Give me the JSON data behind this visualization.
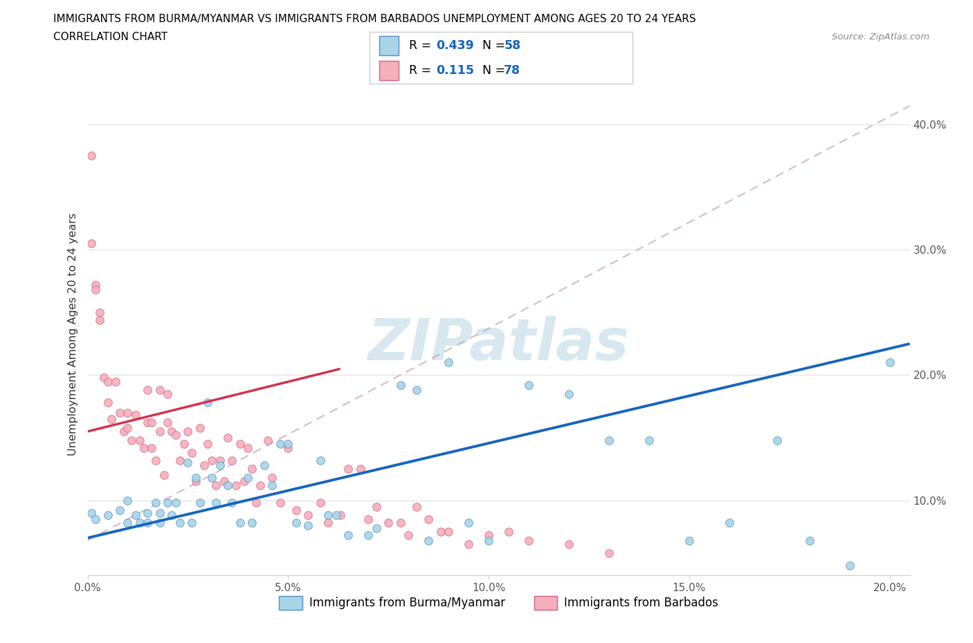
{
  "title_line1": "IMMIGRANTS FROM BURMA/MYANMAR VS IMMIGRANTS FROM BARBADOS UNEMPLOYMENT AMONG AGES 20 TO 24 YEARS",
  "title_line2": "CORRELATION CHART",
  "source_text": "Source: ZipAtlas.com",
  "ylabel": "Unemployment Among Ages 20 to 24 years",
  "xlim": [
    0.0,
    0.205
  ],
  "ylim": [
    0.04,
    0.425
  ],
  "xticks": [
    0.0,
    0.05,
    0.1,
    0.15,
    0.2
  ],
  "yticks": [
    0.1,
    0.2,
    0.3,
    0.4
  ],
  "xticklabels": [
    "0.0%",
    "5.0%",
    "10.0%",
    "15.0%",
    "20.0%"
  ],
  "yticklabels": [
    "10.0%",
    "20.0%",
    "30.0%",
    "40.0%"
  ],
  "color_blue": "#A8D4E8",
  "color_pink": "#F5B0BC",
  "color_blue_line": "#1565C0",
  "color_pink_line": "#D63050",
  "color_blue_edge": "#5090C0",
  "color_pink_edge": "#D06080",
  "legend_label1": "Immigrants from Burma/Myanmar",
  "legend_label2": "Immigrants from Barbados",
  "R1": "0.439",
  "N1": "58",
  "R2": "0.115",
  "N2": "78",
  "watermark": "ZIPatlas",
  "blue_scatter_x": [
    0.001,
    0.002,
    0.005,
    0.008,
    0.01,
    0.01,
    0.012,
    0.013,
    0.015,
    0.015,
    0.017,
    0.018,
    0.018,
    0.02,
    0.021,
    0.022,
    0.023,
    0.025,
    0.026,
    0.027,
    0.028,
    0.03,
    0.031,
    0.032,
    0.033,
    0.035,
    0.036,
    0.038,
    0.04,
    0.041,
    0.044,
    0.046,
    0.048,
    0.05,
    0.052,
    0.055,
    0.058,
    0.06,
    0.062,
    0.065,
    0.07,
    0.072,
    0.078,
    0.082,
    0.085,
    0.09,
    0.095,
    0.1,
    0.11,
    0.12,
    0.13,
    0.14,
    0.15,
    0.16,
    0.172,
    0.18,
    0.19,
    0.2
  ],
  "blue_scatter_y": [
    0.09,
    0.085,
    0.088,
    0.092,
    0.1,
    0.082,
    0.088,
    0.082,
    0.09,
    0.082,
    0.098,
    0.09,
    0.082,
    0.098,
    0.088,
    0.098,
    0.082,
    0.13,
    0.082,
    0.118,
    0.098,
    0.178,
    0.118,
    0.098,
    0.128,
    0.112,
    0.098,
    0.082,
    0.118,
    0.082,
    0.128,
    0.112,
    0.145,
    0.145,
    0.082,
    0.08,
    0.132,
    0.088,
    0.088,
    0.072,
    0.072,
    0.078,
    0.192,
    0.188,
    0.068,
    0.21,
    0.082,
    0.068,
    0.192,
    0.185,
    0.148,
    0.148,
    0.068,
    0.082,
    0.148,
    0.068,
    0.048,
    0.21
  ],
  "pink_scatter_x": [
    0.001,
    0.001,
    0.002,
    0.002,
    0.003,
    0.003,
    0.004,
    0.005,
    0.005,
    0.006,
    0.007,
    0.008,
    0.009,
    0.01,
    0.01,
    0.011,
    0.012,
    0.013,
    0.014,
    0.015,
    0.015,
    0.016,
    0.016,
    0.017,
    0.018,
    0.018,
    0.019,
    0.02,
    0.02,
    0.021,
    0.022,
    0.023,
    0.024,
    0.025,
    0.026,
    0.027,
    0.028,
    0.029,
    0.03,
    0.031,
    0.032,
    0.033,
    0.034,
    0.035,
    0.036,
    0.037,
    0.038,
    0.039,
    0.04,
    0.041,
    0.042,
    0.043,
    0.045,
    0.046,
    0.048,
    0.05,
    0.052,
    0.055,
    0.058,
    0.06,
    0.063,
    0.065,
    0.068,
    0.07,
    0.072,
    0.075,
    0.078,
    0.08,
    0.082,
    0.085,
    0.088,
    0.09,
    0.095,
    0.1,
    0.105,
    0.11,
    0.12,
    0.13
  ],
  "pink_scatter_y": [
    0.375,
    0.305,
    0.272,
    0.268,
    0.25,
    0.244,
    0.198,
    0.195,
    0.178,
    0.165,
    0.195,
    0.17,
    0.155,
    0.17,
    0.158,
    0.148,
    0.168,
    0.148,
    0.142,
    0.188,
    0.162,
    0.162,
    0.142,
    0.132,
    0.188,
    0.155,
    0.12,
    0.185,
    0.162,
    0.155,
    0.152,
    0.132,
    0.145,
    0.155,
    0.138,
    0.115,
    0.158,
    0.128,
    0.145,
    0.132,
    0.112,
    0.132,
    0.115,
    0.15,
    0.132,
    0.112,
    0.145,
    0.115,
    0.142,
    0.125,
    0.098,
    0.112,
    0.148,
    0.118,
    0.098,
    0.142,
    0.092,
    0.088,
    0.098,
    0.082,
    0.088,
    0.125,
    0.125,
    0.085,
    0.095,
    0.082,
    0.082,
    0.072,
    0.095,
    0.085,
    0.075,
    0.075,
    0.065,
    0.072,
    0.075,
    0.068,
    0.065,
    0.058
  ]
}
